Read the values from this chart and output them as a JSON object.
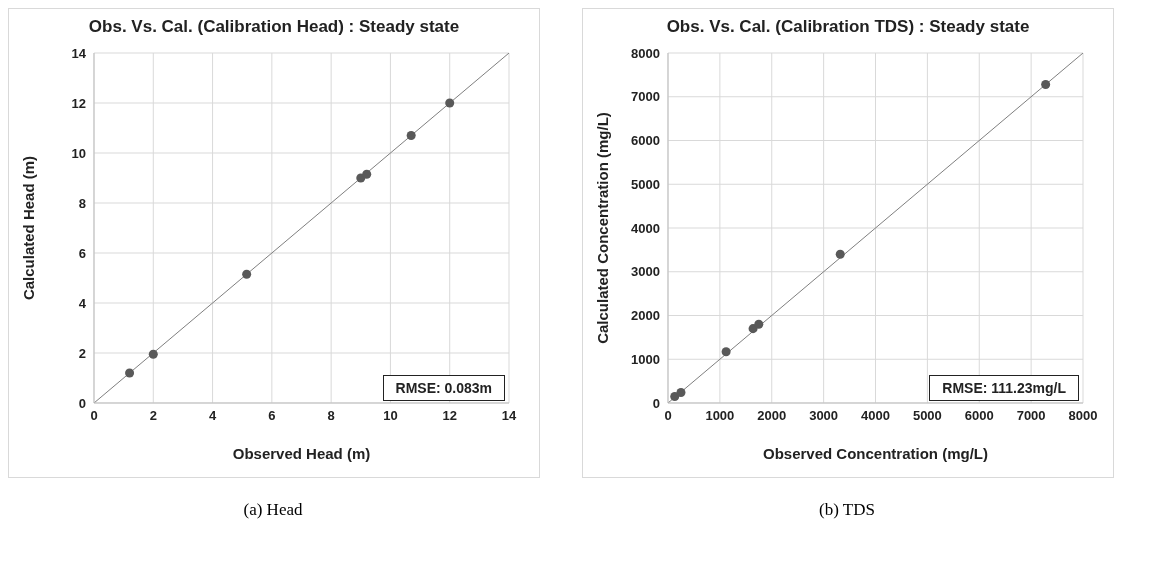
{
  "chart_data": [
    {
      "type": "scatter",
      "title": "Obs. Vs. Cal. (Calibration Head) : Steady state",
      "xlabel": "Observed Head (m)",
      "ylabel": "Calculated Head (m)",
      "xlim": [
        0,
        14
      ],
      "xticks": [
        0,
        2,
        4,
        6,
        8,
        10,
        12,
        14
      ],
      "ylim": [
        0,
        14
      ],
      "yticks": [
        0,
        2,
        4,
        6,
        8,
        10,
        12,
        14
      ],
      "grid": true,
      "series": [
        {
          "type": "scatter",
          "color": "#595959",
          "marker": "circle",
          "x": [
            1.2,
            2.0,
            5.15,
            9.0,
            9.2,
            10.7,
            12.0
          ],
          "values": [
            1.2,
            1.95,
            5.15,
            9.0,
            9.15,
            10.7,
            12.0
          ]
        },
        {
          "type": "line",
          "color": "#7f7f7f",
          "line_style": "solid",
          "x": [
            0,
            14
          ],
          "values": [
            0,
            14
          ]
        }
      ],
      "annotations": [
        "RMSE: 0.083m",
        "(a) Head"
      ]
    },
    {
      "type": "scatter",
      "title": "Obs. Vs. Cal. (Calibration TDS) : Steady state",
      "xlabel": "Observed Concentration (mg/L)",
      "ylabel": "Calculated Concentration (mg/L)",
      "xlim": [
        0,
        8000
      ],
      "xticks": [
        0,
        1000,
        2000,
        3000,
        4000,
        5000,
        6000,
        7000,
        8000
      ],
      "ylim": [
        0,
        8000
      ],
      "yticks": [
        0,
        1000,
        2000,
        3000,
        4000,
        5000,
        6000,
        7000,
        8000
      ],
      "grid": true,
      "series": [
        {
          "type": "scatter",
          "color": "#595959",
          "marker": "circle",
          "x": [
            130,
            250,
            1120,
            1640,
            1750,
            3320,
            7280
          ],
          "values": [
            150,
            240,
            1170,
            1700,
            1800,
            3400,
            7280
          ]
        },
        {
          "type": "line",
          "color": "#7f7f7f",
          "line_style": "solid",
          "x": [
            0,
            8000
          ],
          "values": [
            0,
            8000
          ]
        }
      ],
      "annotations": [
        "RMSE: 111.23mg/L",
        "(b) TDS"
      ]
    }
  ]
}
